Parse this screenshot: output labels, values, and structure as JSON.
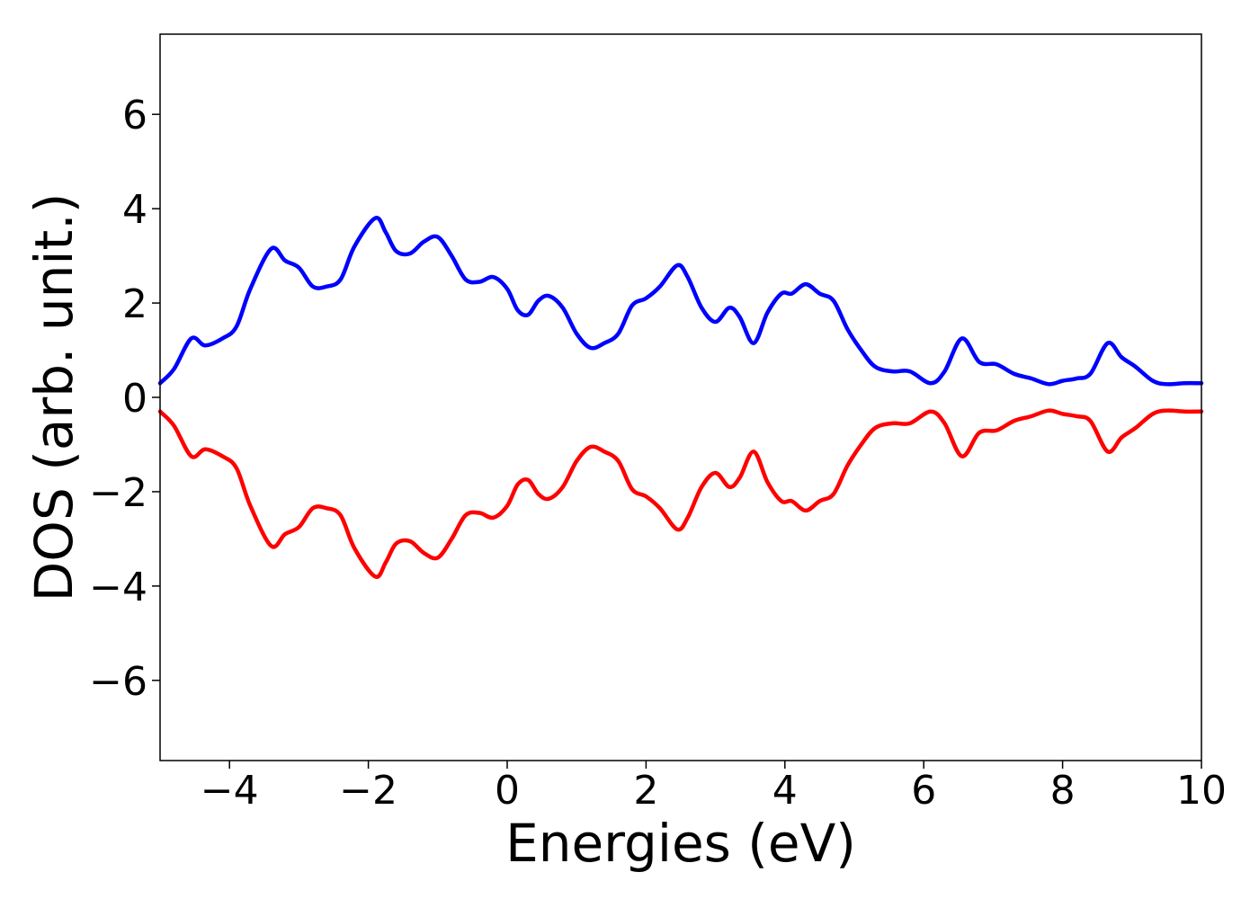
{
  "chart_data": {
    "type": "line",
    "title": "",
    "xlabel": "Energies (eV)",
    "ylabel": "DOS (arb. unit.)",
    "xlim": [
      -5,
      10
    ],
    "ylim": [
      -7.7,
      7.7
    ],
    "xticks": [
      -4,
      -2,
      0,
      2,
      4,
      6,
      8,
      10
    ],
    "yticks": [
      -6,
      -4,
      -2,
      0,
      2,
      4,
      6
    ],
    "xtick_labels": [
      "−4",
      "−2",
      "0",
      "2",
      "4",
      "6",
      "8",
      "10"
    ],
    "ytick_labels": [
      "−6",
      "−4",
      "−2",
      "0",
      "2",
      "4",
      "6"
    ],
    "grid": false,
    "legend": false,
    "series": [
      {
        "color": "#0000ff",
        "x": [
          -5.0,
          -4.8,
          -4.55,
          -4.35,
          -4.1,
          -3.9,
          -3.7,
          -3.4,
          -3.2,
          -3.0,
          -2.8,
          -2.6,
          -2.4,
          -2.2,
          -1.9,
          -1.75,
          -1.6,
          -1.4,
          -1.2,
          -1.0,
          -0.8,
          -0.6,
          -0.4,
          -0.2,
          0.0,
          0.15,
          0.3,
          0.45,
          0.6,
          0.8,
          1.0,
          1.2,
          1.4,
          1.6,
          1.8,
          2.0,
          2.2,
          2.45,
          2.6,
          2.8,
          3.0,
          3.2,
          3.35,
          3.55,
          3.75,
          3.95,
          4.1,
          4.3,
          4.5,
          4.7,
          4.9,
          5.1,
          5.3,
          5.55,
          5.8,
          6.1,
          6.3,
          6.55,
          6.8,
          7.05,
          7.3,
          7.55,
          7.8,
          8.0,
          8.2,
          8.4,
          8.65,
          8.85,
          9.05,
          9.3,
          9.5,
          9.75,
          10.0
        ],
        "y": [
          0.3,
          0.6,
          1.25,
          1.1,
          1.25,
          1.5,
          2.3,
          3.15,
          2.9,
          2.75,
          2.35,
          2.35,
          2.5,
          3.2,
          3.8,
          3.5,
          3.1,
          3.05,
          3.3,
          3.4,
          3.0,
          2.5,
          2.45,
          2.55,
          2.3,
          1.85,
          1.75,
          2.05,
          2.15,
          1.9,
          1.35,
          1.05,
          1.15,
          1.35,
          1.95,
          2.1,
          2.35,
          2.8,
          2.55,
          1.9,
          1.6,
          1.9,
          1.7,
          1.15,
          1.8,
          2.2,
          2.2,
          2.4,
          2.2,
          2.05,
          1.45,
          1.0,
          0.65,
          0.55,
          0.55,
          0.3,
          0.55,
          1.25,
          0.75,
          0.7,
          0.5,
          0.4,
          0.28,
          0.35,
          0.4,
          0.5,
          1.15,
          0.85,
          0.65,
          0.35,
          0.28,
          0.3,
          0.3
        ]
      },
      {
        "color": "#ff0000",
        "x": [
          -5.0,
          -4.8,
          -4.55,
          -4.35,
          -4.1,
          -3.9,
          -3.7,
          -3.4,
          -3.2,
          -3.0,
          -2.8,
          -2.6,
          -2.4,
          -2.2,
          -1.9,
          -1.75,
          -1.6,
          -1.4,
          -1.2,
          -1.0,
          -0.8,
          -0.6,
          -0.4,
          -0.2,
          0.0,
          0.15,
          0.3,
          0.45,
          0.6,
          0.8,
          1.0,
          1.2,
          1.4,
          1.6,
          1.8,
          2.0,
          2.2,
          2.45,
          2.6,
          2.8,
          3.0,
          3.2,
          3.35,
          3.55,
          3.75,
          3.95,
          4.1,
          4.3,
          4.5,
          4.7,
          4.9,
          5.1,
          5.3,
          5.55,
          5.8,
          6.1,
          6.3,
          6.55,
          6.8,
          7.05,
          7.3,
          7.55,
          7.8,
          8.0,
          8.2,
          8.4,
          8.65,
          8.85,
          9.05,
          9.3,
          9.5,
          9.75,
          10.0
        ],
        "y": [
          -0.3,
          -0.6,
          -1.25,
          -1.1,
          -1.25,
          -1.5,
          -2.3,
          -3.15,
          -2.9,
          -2.75,
          -2.35,
          -2.35,
          -2.5,
          -3.2,
          -3.8,
          -3.5,
          -3.1,
          -3.05,
          -3.3,
          -3.4,
          -3.0,
          -2.5,
          -2.45,
          -2.55,
          -2.3,
          -1.85,
          -1.75,
          -2.05,
          -2.15,
          -1.9,
          -1.35,
          -1.05,
          -1.15,
          -1.35,
          -1.95,
          -2.1,
          -2.35,
          -2.8,
          -2.55,
          -1.9,
          -1.6,
          -1.9,
          -1.7,
          -1.15,
          -1.8,
          -2.2,
          -2.2,
          -2.4,
          -2.2,
          -2.05,
          -1.45,
          -1.0,
          -0.65,
          -0.55,
          -0.55,
          -0.3,
          -0.55,
          -1.25,
          -0.75,
          -0.7,
          -0.5,
          -0.4,
          -0.28,
          -0.35,
          -0.4,
          -0.5,
          -1.15,
          -0.85,
          -0.65,
          -0.35,
          -0.28,
          -0.3,
          -0.3
        ]
      }
    ]
  }
}
